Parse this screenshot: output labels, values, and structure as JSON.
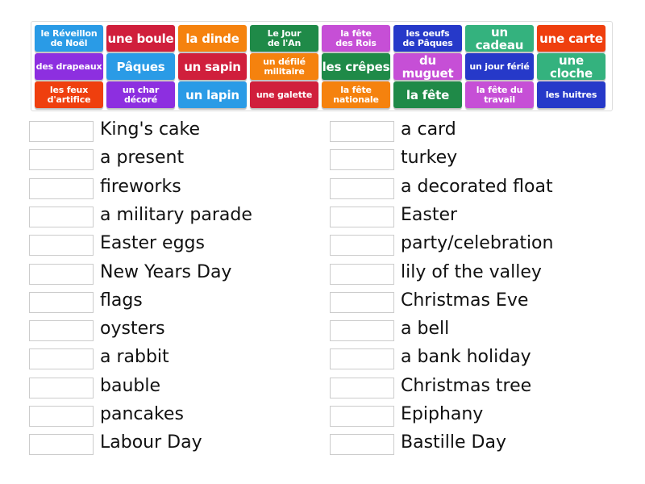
{
  "colors": {
    "blue": "#2a9be6",
    "red": "#d01f3c",
    "orange": "#f5820e",
    "darkgreen": "#1f8a48",
    "magenta": "#c64fd6",
    "darkblue": "#2639c9",
    "teal": "#34b27e",
    "redorange": "#ef3f0e",
    "purple": "#8d2fe0"
  },
  "tiles": [
    {
      "text": "le Réveillon\nde Noël",
      "color": "blue"
    },
    {
      "text": "une boule",
      "color": "red"
    },
    {
      "text": "la dinde",
      "color": "orange"
    },
    {
      "text": "Le Jour\nde l'An",
      "color": "darkgreen"
    },
    {
      "text": "la fête\ndes Rois",
      "color": "magenta"
    },
    {
      "text": "les oeufs\nde Pâques",
      "color": "darkblue"
    },
    {
      "text": "un cadeau",
      "color": "teal"
    },
    {
      "text": "une carte",
      "color": "redorange"
    },
    {
      "text": "des drapeaux",
      "color": "purple"
    },
    {
      "text": "Pâques",
      "color": "blue"
    },
    {
      "text": "un sapin",
      "color": "red"
    },
    {
      "text": "un défilé\nmilitaire",
      "color": "orange"
    },
    {
      "text": "les crêpes",
      "color": "darkgreen"
    },
    {
      "text": "du muguet",
      "color": "magenta"
    },
    {
      "text": "un jour férié",
      "color": "darkblue"
    },
    {
      "text": "une cloche",
      "color": "teal"
    },
    {
      "text": "les feux\nd'artifice",
      "color": "redorange"
    },
    {
      "text": "un char\ndécoré",
      "color": "purple"
    },
    {
      "text": "un lapin",
      "color": "blue"
    },
    {
      "text": "une galette",
      "color": "red"
    },
    {
      "text": "la fête\nnationale",
      "color": "orange"
    },
    {
      "text": "la fête",
      "color": "darkgreen"
    },
    {
      "text": "la fête du\ntravail",
      "color": "magenta"
    },
    {
      "text": "les huitres",
      "color": "darkblue"
    }
  ],
  "left": [
    "King's cake",
    "a present",
    "fireworks",
    "a military parade",
    "Easter eggs",
    "New Years Day",
    "flags",
    "oysters",
    "a rabbit",
    "bauble",
    "pancakes",
    "Labour Day"
  ],
  "right": [
    "a card",
    "turkey",
    "a decorated float",
    "Easter",
    "party/celebration",
    "lily of the valley",
    "Christmas Eve",
    "a bell",
    "a bank holiday",
    "Christmas tree",
    "Epiphany",
    "Bastille Day"
  ]
}
